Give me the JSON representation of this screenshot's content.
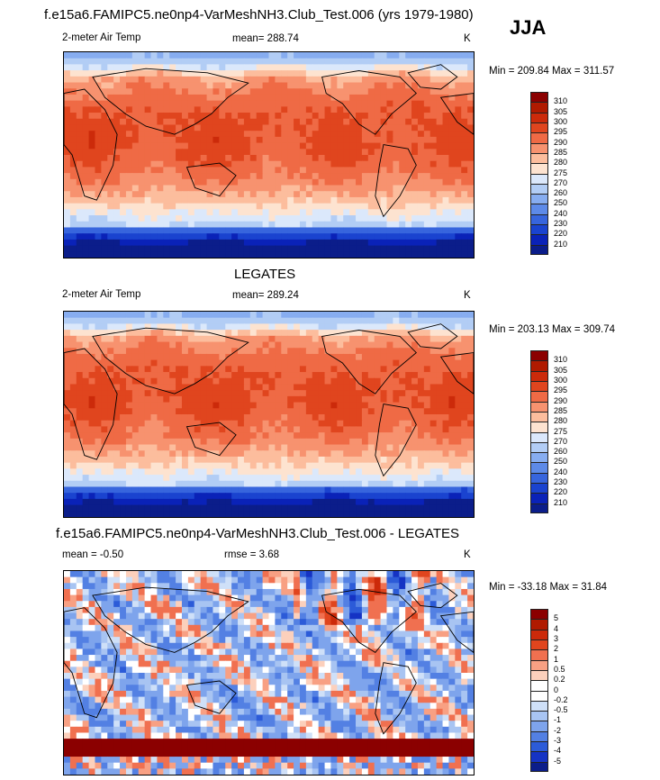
{
  "main_title": "f.e15a6.FAMIPC5.ne0np4-VarMeshNH3.Club_Test.006 (yrs 1979-1980)",
  "season": "JJA",
  "panels": [
    {
      "title": "",
      "left_label": "2-meter Air Temp",
      "center_label": "mean= 288.74",
      "units": "K",
      "minmax": "Min = 209.84 Max = 311.57",
      "kind": "temp",
      "colorbar": {
        "levels": [
          "310",
          "305",
          "300",
          "295",
          "290",
          "285",
          "280",
          "275",
          "270",
          "260",
          "250",
          "240",
          "230",
          "220",
          "210"
        ],
        "colors": [
          "#8b0000",
          "#b01a00",
          "#cc2a0a",
          "#e0451e",
          "#ef6a45",
          "#f7926f",
          "#fcbd9d",
          "#fde3d0",
          "#dbe8fb",
          "#b2cdf5",
          "#87adf0",
          "#5d8ae8",
          "#3765dd",
          "#1a43cf",
          "#0a22b8",
          "#0b1d8a"
        ]
      }
    },
    {
      "title": "LEGATES",
      "left_label": "2-meter Air Temp",
      "center_label": "mean= 289.24",
      "units": "K",
      "minmax": "Min = 203.13 Max = 309.74",
      "kind": "temp",
      "colorbar": {
        "levels": [
          "310",
          "305",
          "300",
          "295",
          "290",
          "285",
          "280",
          "275",
          "270",
          "260",
          "250",
          "240",
          "230",
          "220",
          "210"
        ],
        "colors": [
          "#8b0000",
          "#b01a00",
          "#cc2a0a",
          "#e0451e",
          "#ef6a45",
          "#f7926f",
          "#fcbd9d",
          "#fde3d0",
          "#dbe8fb",
          "#b2cdf5",
          "#87adf0",
          "#5d8ae8",
          "#3765dd",
          "#1a43cf",
          "#0a22b8",
          "#0b1d8a"
        ]
      }
    },
    {
      "title": "f.e15a6.FAMIPC5.ne0np4-VarMeshNH3.Club_Test.006 - LEGATES",
      "left_label": "mean =  -0.50",
      "center_label": "rmse =   3.68",
      "units": "K",
      "minmax": "Min = -33.18 Max =  31.84",
      "kind": "diff",
      "colorbar": {
        "levels": [
          "5",
          "4",
          "3",
          "2",
          "1",
          "0.5",
          "0.2",
          "0",
          "-0.2",
          "-0.5",
          "-1",
          "-2",
          "-3",
          "-4",
          "-5"
        ],
        "colors": [
          "#8b0000",
          "#b01a00",
          "#cc2a0a",
          "#e0451e",
          "#f07050",
          "#f8a083",
          "#fcd0bc",
          "#ffffff",
          "#ffffff",
          "#cfe0f8",
          "#a8c4f2",
          "#7ea4ec",
          "#5380e3",
          "#2c5bd8",
          "#1533c4",
          "#0b1d8a"
        ]
      }
    }
  ],
  "chart_data": [
    {
      "type": "heatmap",
      "title": "",
      "subtitle": "2-meter Air Temp",
      "summary": "mean= 288.74",
      "units": "K",
      "min": 209.84,
      "max": 311.57,
      "colorbar_levels": [
        310,
        305,
        300,
        295,
        290,
        285,
        280,
        275,
        270,
        260,
        250,
        240,
        230,
        220,
        210
      ]
    },
    {
      "type": "heatmap",
      "title": "LEGATES",
      "subtitle": "2-meter Air Temp",
      "summary": "mean= 289.24",
      "units": "K",
      "min": 203.13,
      "max": 309.74,
      "colorbar_levels": [
        310,
        305,
        300,
        295,
        290,
        285,
        280,
        275,
        270,
        260,
        250,
        240,
        230,
        220,
        210
      ]
    },
    {
      "type": "heatmap",
      "title": "f.e15a6.FAMIPC5.ne0np4-VarMeshNH3.Club_Test.006 - LEGATES",
      "summary": "mean =  -0.50 ; rmse =   3.68",
      "units": "K",
      "min": -33.18,
      "max": 31.84,
      "colorbar_levels": [
        5,
        4,
        3,
        2,
        1,
        0.5,
        0.2,
        0,
        -0.2,
        -0.5,
        -1,
        -2,
        -3,
        -4,
        -5
      ]
    }
  ]
}
